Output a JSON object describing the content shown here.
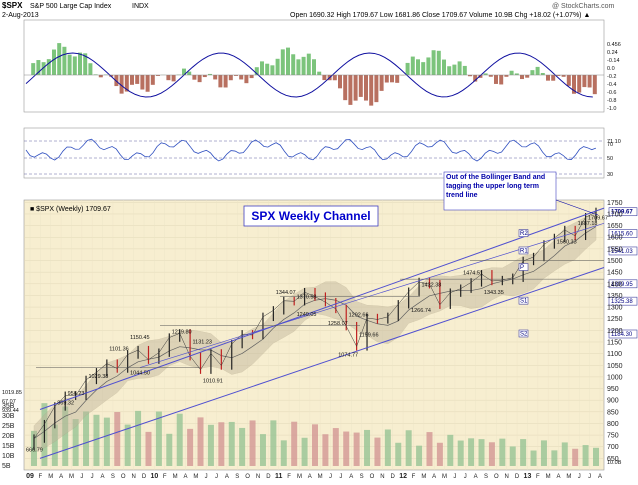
{
  "header": {
    "symbol": "$SPX",
    "name": "S&P 500 Large Cap Index",
    "exchange": "INDX",
    "watermark": "@ StockCharts.com",
    "date": "2-Aug-2013",
    "ohlc": "Open 1690.32  High 1709.67  Low 1681.86  Close 1709.67  Volume 10.9B  Chg +18.02 (+1.07%) ▲"
  },
  "colors": {
    "bg_main": "#f7eed0",
    "up": "#3a9a3a",
    "down": "#c02020",
    "channel": "#5050d0",
    "bollinger": "#bfb49a",
    "ma": "#606060",
    "macd_pos": "#7cc47c",
    "macd_neg": "#b87060",
    "macd_line": "#1010a0",
    "vol_up": "#90c090",
    "vol_down": "#d09090",
    "accent": "#0000cc"
  },
  "chart_data": {
    "type": "line",
    "title": "SPX Weekly Channel",
    "legend": "■ $SPX (Weekly) 1709.67",
    "annotation": "Out of the Bollinger Band and tagging the upper long term trend line",
    "x": [
      "2009-Feb",
      "2009-Mar",
      "2009-Apr",
      "2009-May",
      "2009-Jun",
      "2009-Jul",
      "2009-Aug",
      "2009-Sep",
      "2009-Oct",
      "2009-Nov",
      "2009-Dec",
      "2010-Jan",
      "2010-Feb",
      "2010-Mar",
      "2010-Apr",
      "2010-May",
      "2010-Jun",
      "2010-Jul",
      "2010-Aug",
      "2010-Sep",
      "2010-Oct",
      "2010-Nov",
      "2010-Dec",
      "2011-Jan",
      "2011-Feb",
      "2011-Mar",
      "2011-Apr",
      "2011-May",
      "2011-Jun",
      "2011-Jul",
      "2011-Aug",
      "2011-Sep",
      "2011-Oct",
      "2011-Nov",
      "2011-Dec",
      "2012-Jan",
      "2012-Feb",
      "2012-Mar",
      "2012-Apr",
      "2012-May",
      "2012-Jun",
      "2012-Jul",
      "2012-Aug",
      "2012-Sep",
      "2012-Oct",
      "2012-Nov",
      "2012-Dec",
      "2013-Jan",
      "2013-Feb",
      "2013-Mar",
      "2013-Apr",
      "2013-May",
      "2013-Jun",
      "2013-Jul",
      "2013-Aug"
    ],
    "close": [
      735,
      797,
      873,
      919,
      919,
      987,
      1020,
      1057,
      1036,
      1096,
      1115,
      1074,
      1104,
      1169,
      1187,
      1089,
      1031,
      1101,
      1049,
      1141,
      1183,
      1180,
      1258,
      1286,
      1327,
      1325,
      1364,
      1345,
      1321,
      1292,
      1218,
      1131,
      1253,
      1247,
      1258,
      1312,
      1366,
      1408,
      1398,
      1310,
      1362,
      1379,
      1406,
      1441,
      1412,
      1416,
      1426,
      1498,
      1515,
      1569,
      1597,
      1631,
      1606,
      1686,
      1709
    ],
    "x_ticks": [
      "09",
      "F",
      "M",
      "A",
      "M",
      "J",
      "J",
      "A",
      "S",
      "O",
      "N",
      "D",
      "10",
      "F",
      "M",
      "A",
      "M",
      "J",
      "J",
      "A",
      "S",
      "O",
      "N",
      "D",
      "11",
      "F",
      "M",
      "A",
      "M",
      "J",
      "J",
      "A",
      "S",
      "O",
      "N",
      "D",
      "12",
      "F",
      "M",
      "A",
      "M",
      "J",
      "J",
      "A",
      "S",
      "O",
      "N",
      "D",
      "13",
      "F",
      "M",
      "A",
      "M",
      "J",
      "J",
      "A"
    ],
    "ylim": [
      600,
      1760
    ],
    "y_ticks": [
      650,
      700,
      750,
      800,
      850,
      900,
      950,
      1000,
      1050,
      1100,
      1150,
      1200,
      1250,
      1300,
      1350,
      1400,
      1450,
      1500,
      1550,
      1600,
      1650,
      1700,
      1750
    ],
    "price_labels": [
      "666.79",
      "956.23",
      "869.32",
      "1029.38",
      "1101.36",
      "1044.50",
      "1150.45",
      "1219.80",
      "1131.23",
      "1010.91",
      "1344.07",
      "1370.58",
      "1249.05",
      "1258.07",
      "1074.77",
      "1292.66",
      "1159.66",
      "1422.38",
      "1266.74",
      "1474.51",
      "1343.35",
      "1687.18",
      "1560.33",
      "1709.67"
    ],
    "right_tags": [
      "1709.67",
      "1615.60",
      "1541.03",
      "1399.95",
      "1325.38",
      "1184.30"
    ],
    "pivot_labels": [
      "R2",
      "R1",
      "P",
      "S1",
      "S2"
    ],
    "volume_labels": [
      "35B",
      "30B",
      "25B",
      "20B",
      "15B",
      "10B",
      "5B"
    ],
    "left_labels": [
      "1019.85",
      "67.07",
      "939.44"
    ],
    "macd_scale": [
      "0.456",
      "0.24",
      "-0.14",
      "0.0",
      "-0.2",
      "-0.4",
      "-0.6",
      "-0.8",
      "-1.0"
    ],
    "rsi_scale": [
      "71.10",
      "70",
      "50",
      "30"
    ],
    "volume_right": [
      "10.0B"
    ]
  }
}
